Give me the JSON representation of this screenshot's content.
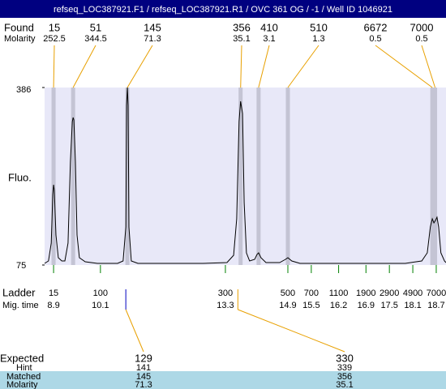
{
  "title": "refseq_LOC387921.F1 / refseq_LOC387921.R1 / OVC 361 OG / -1 / Well ID 1046921",
  "found": {
    "label": "Found",
    "molarity_label": "Molarity",
    "sizes": [
      "15",
      "51",
      "145",
      "356",
      "410",
      "510",
      "6672",
      "7000"
    ],
    "molarity": [
      "252.5",
      "344.5",
      "71.3",
      "35.1",
      "3.1",
      "1.3",
      "0.5",
      "0.5"
    ]
  },
  "chart_data": {
    "type": "line",
    "ylabel": "Fluo.",
    "color": "#000000",
    "plot_color": "#e8e8f8",
    "ylim": [
      75,
      386
    ],
    "yticks": [
      75,
      386
    ],
    "xlim": [
      8.67,
      18.95
    ],
    "peak_times": [
      8.9,
      9.4,
      10.79,
      13.69,
      14.15,
      14.9,
      18.6,
      18.67
    ],
    "x": [
      8.67,
      8.77,
      8.84,
      8.88,
      8.9,
      8.92,
      8.96,
      9.02,
      9.11,
      9.19,
      9.27,
      9.33,
      9.38,
      9.4,
      9.42,
      9.46,
      9.5,
      9.56,
      9.71,
      10.02,
      10.54,
      10.68,
      10.75,
      10.77,
      10.79,
      10.81,
      10.83,
      10.89,
      11.06,
      12.72,
      13.34,
      13.51,
      13.59,
      13.65,
      13.69,
      13.74,
      13.78,
      13.84,
      13.92,
      14.05,
      14.11,
      14.15,
      14.21,
      14.34,
      14.69,
      14.84,
      14.9,
      15.0,
      15.21,
      17.91,
      18.33,
      18.47,
      18.55,
      18.6,
      18.64,
      18.68,
      18.72,
      18.76,
      18.82,
      18.91,
      18.95
    ],
    "values": [
      77.8,
      82.1,
      113.3,
      198.5,
      215.6,
      205.6,
      127.5,
      87.8,
      82.1,
      82.1,
      113.3,
      255.3,
      326.3,
      333.4,
      329.2,
      255.3,
      127.5,
      87.8,
      80.7,
      77.8,
      77.8,
      82.1,
      141.7,
      354.8,
      386,
      354.8,
      141.7,
      82.1,
      77.8,
      77.8,
      79.3,
      92,
      156,
      326.3,
      361.8,
      340.6,
      184.4,
      96.3,
      82.1,
      84.9,
      93.5,
      96.3,
      87.8,
      79.3,
      79.3,
      84.9,
      87.8,
      82.1,
      77.8,
      77.8,
      82.1,
      96.3,
      141.7,
      156,
      148.8,
      153.1,
      158.8,
      141.7,
      96.3,
      82.1,
      79.3
    ]
  },
  "ladder": {
    "label": "Ladder",
    "time_label": "Mig. time",
    "sizes": [
      "15",
      "100",
      "300",
      "500",
      "700",
      "1100",
      "1900",
      "2900",
      "4900",
      "7000"
    ],
    "times": [
      8.9,
      10.1,
      13.3,
      14.9,
      15.5,
      16.2,
      16.9,
      17.5,
      18.1,
      18.7
    ]
  },
  "expected": {
    "label": "Expected",
    "hint_label": "Hint",
    "matched_label": "Matched",
    "molarity_label": "Molarity",
    "times": [
      10.75,
      13.62
    ],
    "sizes": [
      "129",
      "330"
    ],
    "hint": [
      "141",
      "339"
    ],
    "matched": [
      "145",
      "356"
    ],
    "molarity": [
      "71.3",
      "35.1"
    ]
  }
}
